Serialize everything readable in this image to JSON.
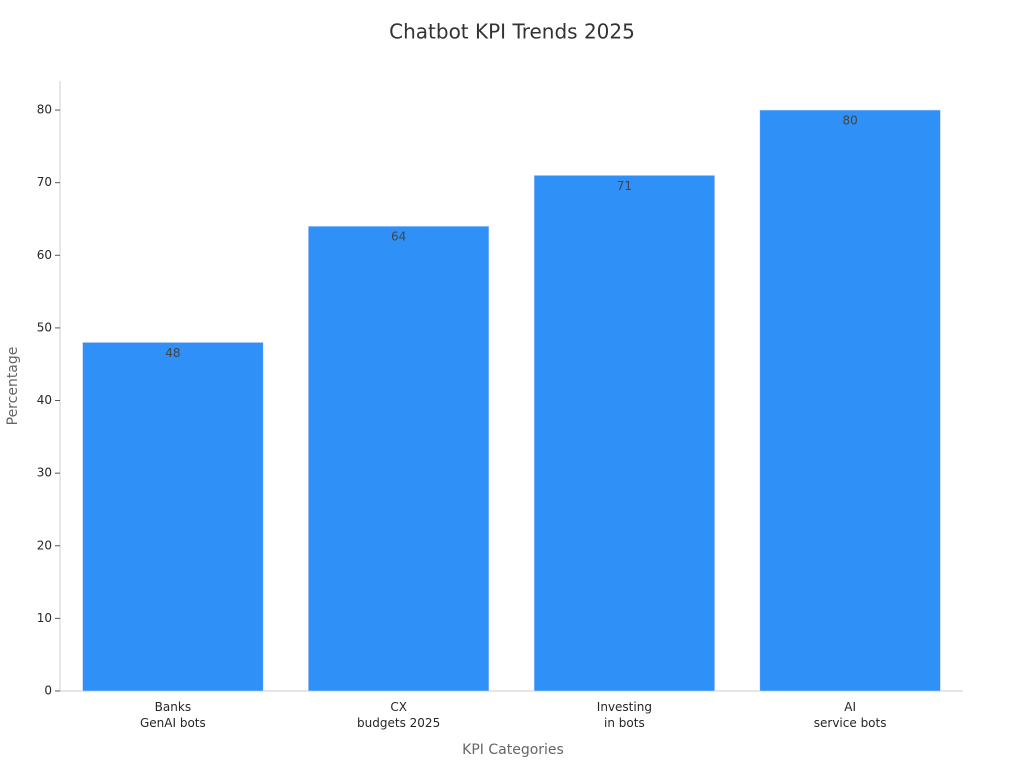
{
  "chart_data": {
    "type": "bar",
    "title": "Chatbot KPI Trends 2025",
    "x_label": "KPI Categories",
    "y_label": "Percentage",
    "categories": [
      [
        "Banks",
        "GenAI bots"
      ],
      [
        "CX",
        "budgets 2025"
      ],
      [
        "Investing",
        "in bots"
      ],
      [
        "AI",
        "service bots"
      ]
    ],
    "values": [
      48,
      64,
      71,
      80
    ],
    "color": "#2f91f8",
    "ylim": [
      0,
      84
    ],
    "yticks": [
      0,
      10,
      20,
      30,
      40,
      50,
      60,
      70,
      80
    ],
    "grid": false
  }
}
